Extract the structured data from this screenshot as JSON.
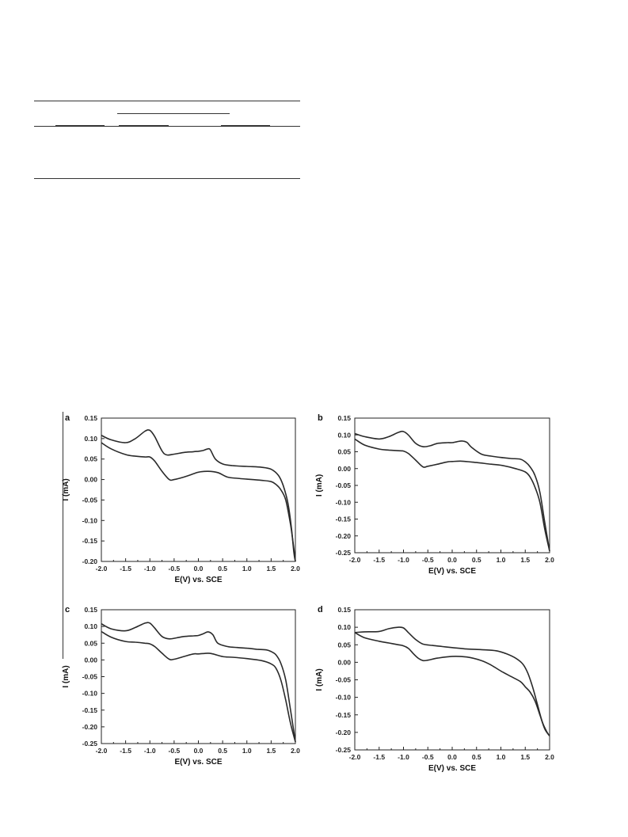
{
  "chart_data": [
    {
      "type": "line",
      "panel": "a",
      "xlabel": "E(V) vs. SCE",
      "ylabel": "I (mA)",
      "xlim": [
        -2.0,
        2.0
      ],
      "ylim": [
        -0.2,
        0.15
      ],
      "xticks": [
        "-2.0",
        "-1.5",
        "-1.0",
        "-0.5",
        "0.0",
        "0.5",
        "1.0",
        "1.5",
        "2.0"
      ],
      "yticks": [
        "0.15",
        "0.10",
        "0.05",
        "0.00",
        "-0.05",
        "-0.10",
        "-0.15",
        "-0.20"
      ],
      "grid": false,
      "series": [
        {
          "x": [
            -2.0,
            -1.8,
            -1.5,
            -1.3,
            -1.1,
            -1.0,
            -0.9,
            -0.75,
            -0.65,
            -0.5,
            -0.3,
            -0.1,
            0.0,
            0.1,
            0.2,
            0.25,
            0.35,
            0.5,
            0.7,
            1.0,
            1.3,
            1.5,
            1.65,
            1.75,
            1.85,
            1.92,
            1.97,
            2.0
          ],
          "y": [
            0.108,
            0.097,
            0.09,
            0.1,
            0.118,
            0.12,
            0.105,
            0.07,
            0.06,
            0.062,
            0.066,
            0.068,
            0.069,
            0.071,
            0.075,
            0.072,
            0.05,
            0.038,
            0.034,
            0.032,
            0.03,
            0.025,
            0.01,
            -0.015,
            -0.06,
            -0.12,
            -0.18,
            -0.2
          ]
        },
        {
          "x": [
            -2.0,
            -1.8,
            -1.5,
            -1.3,
            -1.1,
            -1.0,
            -0.9,
            -0.75,
            -0.6,
            -0.5,
            -0.3,
            -0.1,
            0.0,
            0.2,
            0.4,
            0.6,
            0.8,
            1.0,
            1.3,
            1.5,
            1.6,
            1.7,
            1.8,
            1.9,
            1.97,
            2.0
          ],
          "y": [
            0.09,
            0.075,
            0.061,
            0.057,
            0.055,
            0.055,
            0.045,
            0.02,
            0.0,
            0.0,
            0.006,
            0.014,
            0.018,
            0.02,
            0.017,
            0.006,
            0.003,
            0.001,
            -0.002,
            -0.005,
            -0.012,
            -0.025,
            -0.05,
            -0.11,
            -0.17,
            -0.2
          ]
        }
      ]
    },
    {
      "type": "line",
      "panel": "b",
      "xlabel": "E(V) vs. SCE",
      "ylabel": "I (mA)",
      "xlim": [
        -2.0,
        2.0
      ],
      "ylim": [
        -0.25,
        0.15
      ],
      "xticks": [
        "-2.0",
        "-1.5",
        "-1.0",
        "-0.5",
        "0.0",
        "0.5",
        "1.0",
        "1.5",
        "2.0"
      ],
      "yticks": [
        "0.15",
        "0.10",
        "0.05",
        "0.00",
        "-0.05",
        "-0.10",
        "-0.15",
        "-0.20",
        "-0.25"
      ],
      "grid": false,
      "series": [
        {
          "x": [
            -2.0,
            -1.8,
            -1.5,
            -1.3,
            -1.1,
            -1.0,
            -0.9,
            -0.75,
            -0.6,
            -0.45,
            -0.3,
            -0.1,
            0.0,
            0.1,
            0.2,
            0.3,
            0.4,
            0.6,
            0.8,
            1.0,
            1.2,
            1.4,
            1.5,
            1.6,
            1.7,
            1.8,
            1.9,
            2.0
          ],
          "y": [
            0.104,
            0.095,
            0.088,
            0.095,
            0.108,
            0.11,
            0.1,
            0.075,
            0.065,
            0.068,
            0.075,
            0.077,
            0.077,
            0.08,
            0.082,
            0.078,
            0.063,
            0.043,
            0.037,
            0.033,
            0.03,
            0.028,
            0.02,
            0.005,
            -0.02,
            -0.07,
            -0.16,
            -0.245
          ]
        },
        {
          "x": [
            -2.0,
            -1.8,
            -1.5,
            -1.3,
            -1.1,
            -1.0,
            -0.9,
            -0.75,
            -0.6,
            -0.5,
            -0.3,
            -0.1,
            0.0,
            0.2,
            0.5,
            0.8,
            1.0,
            1.3,
            1.5,
            1.6,
            1.7,
            1.8,
            1.9,
            2.0
          ],
          "y": [
            0.088,
            0.07,
            0.058,
            0.055,
            0.053,
            0.052,
            0.045,
            0.025,
            0.005,
            0.007,
            0.013,
            0.02,
            0.021,
            0.022,
            0.018,
            0.013,
            0.01,
            0.0,
            -0.01,
            -0.025,
            -0.055,
            -0.1,
            -0.18,
            -0.245
          ]
        }
      ]
    },
    {
      "type": "line",
      "panel": "c",
      "xlabel": "E(V) vs. SCE",
      "ylabel": "I (mA)",
      "xlim": [
        -2.0,
        2.0
      ],
      "ylim": [
        -0.25,
        0.15
      ],
      "xticks": [
        "-2.0",
        "-1.5",
        "-1.0",
        "-0.5",
        "0.0",
        "0.5",
        "1.0",
        "1.5",
        "2.0"
      ],
      "yticks": [
        "0.15",
        "0.10",
        "0.05",
        "0.00",
        "-0.05",
        "-0.10",
        "-0.15",
        "-0.20",
        "-0.25"
      ],
      "grid": false,
      "series": [
        {
          "x": [
            -2.0,
            -1.8,
            -1.5,
            -1.3,
            -1.1,
            -1.0,
            -0.9,
            -0.75,
            -0.6,
            -0.45,
            -0.3,
            -0.1,
            0.0,
            0.1,
            0.2,
            0.3,
            0.4,
            0.6,
            0.8,
            1.0,
            1.2,
            1.4,
            1.5,
            1.6,
            1.7,
            1.8,
            1.9,
            2.0
          ],
          "y": [
            0.108,
            0.093,
            0.087,
            0.097,
            0.11,
            0.11,
            0.095,
            0.07,
            0.063,
            0.066,
            0.07,
            0.072,
            0.073,
            0.078,
            0.084,
            0.075,
            0.05,
            0.04,
            0.037,
            0.035,
            0.032,
            0.03,
            0.025,
            0.015,
            -0.01,
            -0.06,
            -0.15,
            -0.245
          ]
        },
        {
          "x": [
            -2.0,
            -1.8,
            -1.5,
            -1.3,
            -1.1,
            -1.0,
            -0.9,
            -0.75,
            -0.6,
            -0.5,
            -0.3,
            -0.1,
            0.0,
            0.2,
            0.3,
            0.5,
            0.7,
            1.0,
            1.3,
            1.5,
            1.6,
            1.7,
            1.8,
            1.9,
            2.0
          ],
          "y": [
            0.085,
            0.068,
            0.055,
            0.053,
            0.05,
            0.048,
            0.04,
            0.02,
            0.002,
            0.002,
            0.01,
            0.018,
            0.018,
            0.02,
            0.018,
            0.01,
            0.008,
            0.004,
            -0.002,
            -0.012,
            -0.025,
            -0.06,
            -0.12,
            -0.19,
            -0.245
          ]
        }
      ]
    },
    {
      "type": "line",
      "panel": "d",
      "xlabel": "E(V) vs. SCE",
      "ylabel": "I (mA)",
      "xlim": [
        -2.0,
        2.0
      ],
      "ylim": [
        -0.25,
        0.15
      ],
      "xticks": [
        "-2.0",
        "-1.5",
        "-1.0",
        "-0.5",
        "0.0",
        "0.5",
        "1.0",
        "1.5",
        "2.0"
      ],
      "yticks": [
        "0.15",
        "0.10",
        "0.05",
        "0.00",
        "-0.05",
        "-0.10",
        "-0.15",
        "-0.20",
        "-0.25"
      ],
      "grid": false,
      "series": [
        {
          "x": [
            -2.0,
            -1.8,
            -1.5,
            -1.3,
            -1.1,
            -1.0,
            -0.9,
            -0.75,
            -0.6,
            -0.4,
            -0.2,
            0.0,
            0.3,
            0.6,
            0.9,
            1.1,
            1.3,
            1.45,
            1.55,
            1.65,
            1.75,
            1.85,
            1.95,
            2.0
          ],
          "y": [
            0.085,
            0.087,
            0.088,
            0.096,
            0.1,
            0.098,
            0.085,
            0.065,
            0.052,
            0.048,
            0.045,
            0.042,
            0.038,
            0.036,
            0.033,
            0.025,
            0.012,
            -0.005,
            -0.03,
            -0.07,
            -0.12,
            -0.17,
            -0.2,
            -0.21
          ]
        },
        {
          "x": [
            -2.0,
            -1.8,
            -1.5,
            -1.3,
            -1.1,
            -1.0,
            -0.9,
            -0.8,
            -0.7,
            -0.6,
            -0.5,
            -0.3,
            0.0,
            0.3,
            0.6,
            0.8,
            1.0,
            1.2,
            1.4,
            1.5,
            1.6,
            1.7,
            1.8,
            1.9,
            2.0
          ],
          "y": [
            0.085,
            0.07,
            0.06,
            0.055,
            0.05,
            0.047,
            0.04,
            0.025,
            0.012,
            0.005,
            0.006,
            0.012,
            0.017,
            0.015,
            0.005,
            -0.008,
            -0.025,
            -0.04,
            -0.055,
            -0.07,
            -0.085,
            -0.11,
            -0.15,
            -0.19,
            -0.21
          ]
        }
      ]
    }
  ]
}
